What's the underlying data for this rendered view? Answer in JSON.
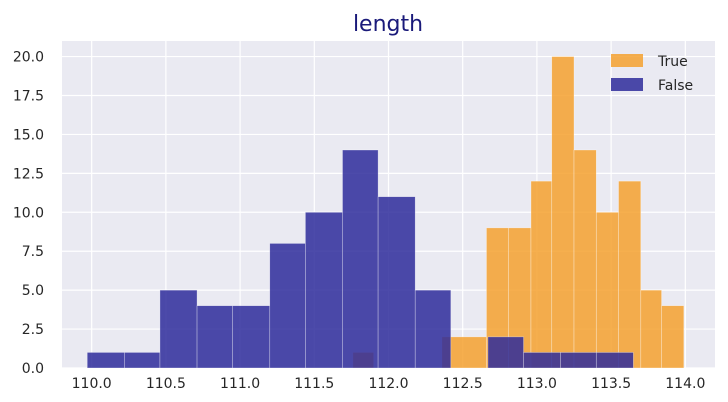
{
  "chart_data": {
    "type": "bar",
    "title": "length",
    "title_color": "#1a1a7a",
    "xlabel": "",
    "ylabel": "",
    "xlim": [
      109.8,
      114.2
    ],
    "ylim": [
      0,
      21
    ],
    "xticks": [
      "110.0",
      "110.5",
      "111.0",
      "111.5",
      "112.0",
      "112.5",
      "113.0",
      "113.5",
      "114.0"
    ],
    "yticks": [
      "0.0",
      "2.5",
      "5.0",
      "7.5",
      "10.0",
      "12.5",
      "15.0",
      "17.5",
      "20.0"
    ],
    "grid": true,
    "background": "#eaeaf2",
    "legend_position": "top-right",
    "series": [
      {
        "name": "True",
        "color": "#f5a12f",
        "alpha": 0.85,
        "bins": [
          {
            "x0": 111.76,
            "x1": 111.9,
            "count": 1
          },
          {
            "x0": 112.36,
            "x1": 112.66,
            "count": 2
          },
          {
            "x0": 112.66,
            "x1": 112.81,
            "count": 9
          },
          {
            "x0": 112.81,
            "x1": 112.96,
            "count": 9
          },
          {
            "x0": 112.96,
            "x1": 113.1,
            "count": 12
          },
          {
            "x0": 113.1,
            "x1": 113.25,
            "count": 20
          },
          {
            "x0": 113.25,
            "x1": 113.4,
            "count": 14
          },
          {
            "x0": 113.4,
            "x1": 113.55,
            "count": 10
          },
          {
            "x0": 113.55,
            "x1": 113.7,
            "count": 12
          },
          {
            "x0": 113.7,
            "x1": 113.84,
            "count": 5
          },
          {
            "x0": 113.84,
            "x1": 113.99,
            "count": 4
          }
        ]
      },
      {
        "name": "False",
        "color": "#2e2b9b",
        "alpha": 0.85,
        "bins": [
          {
            "x0": 109.97,
            "x1": 110.22,
            "count": 1
          },
          {
            "x0": 110.22,
            "x1": 110.46,
            "count": 1
          },
          {
            "x0": 110.46,
            "x1": 110.71,
            "count": 5
          },
          {
            "x0": 110.71,
            "x1": 110.95,
            "count": 4
          },
          {
            "x0": 110.95,
            "x1": 111.2,
            "count": 4
          },
          {
            "x0": 111.2,
            "x1": 111.44,
            "count": 8
          },
          {
            "x0": 111.44,
            "x1": 111.69,
            "count": 10
          },
          {
            "x0": 111.69,
            "x1": 111.93,
            "count": 14
          },
          {
            "x0": 111.93,
            "x1": 112.18,
            "count": 11
          },
          {
            "x0": 112.18,
            "x1": 112.42,
            "count": 5
          },
          {
            "x0": 112.42,
            "x1": 112.67,
            "count": 0
          },
          {
            "x0": 112.67,
            "x1": 112.91,
            "count": 2
          },
          {
            "x0": 112.91,
            "x1": 113.16,
            "count": 1
          },
          {
            "x0": 113.16,
            "x1": 113.4,
            "count": 1
          },
          {
            "x0": 113.4,
            "x1": 113.65,
            "count": 1
          }
        ]
      }
    ]
  }
}
